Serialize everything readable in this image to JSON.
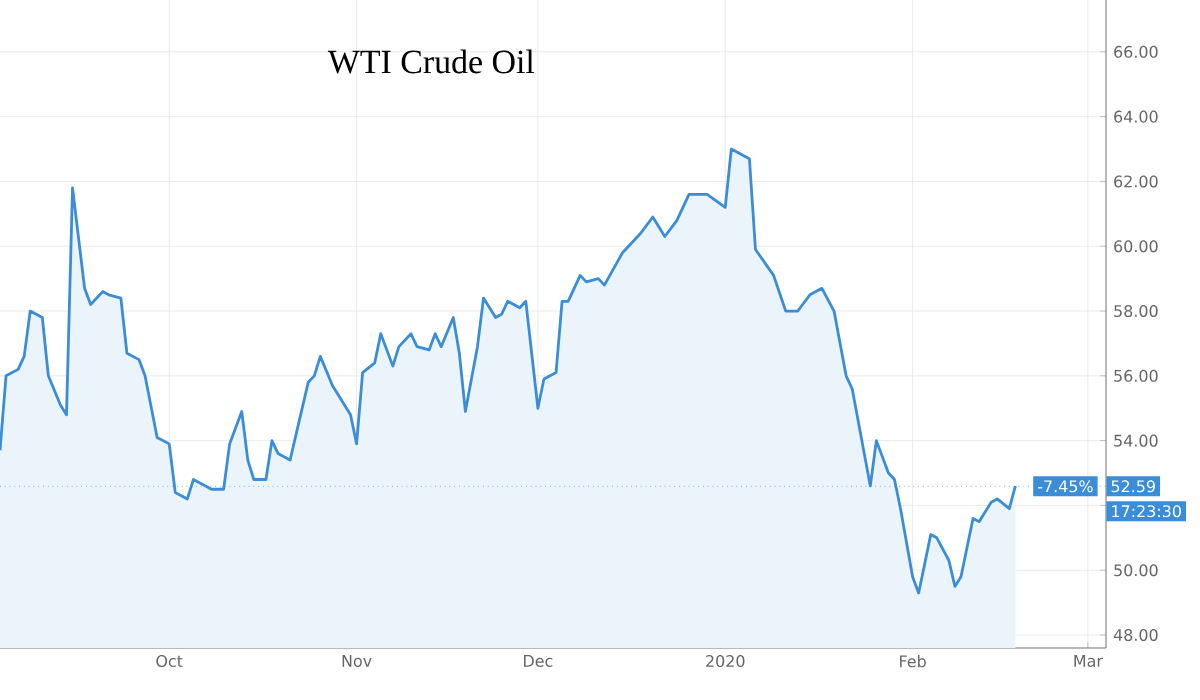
{
  "chart_data": {
    "type": "area",
    "title": "WTI Crude Oil",
    "x": [
      "2019-09-03",
      "2019-09-04",
      "2019-09-06",
      "2019-09-07",
      "2019-09-08",
      "2019-09-10",
      "2019-09-11",
      "2019-09-13",
      "2019-09-14",
      "2019-09-15",
      "2019-09-17",
      "2019-09-18",
      "2019-09-20",
      "2019-09-21",
      "2019-09-23",
      "2019-09-24",
      "2019-09-26",
      "2019-09-27",
      "2019-09-29",
      "2019-10-01",
      "2019-10-02",
      "2019-10-04",
      "2019-10-05",
      "2019-10-07",
      "2019-10-08",
      "2019-10-10",
      "2019-10-11",
      "2019-10-13",
      "2019-10-14",
      "2019-10-15",
      "2019-10-17",
      "2019-10-18",
      "2019-10-19",
      "2019-10-21",
      "2019-10-22",
      "2019-10-24",
      "2019-10-25",
      "2019-10-26",
      "2019-10-28",
      "2019-10-29",
      "2019-10-31",
      "2019-11-01",
      "2019-11-02",
      "2019-11-04",
      "2019-11-05",
      "2019-11-07",
      "2019-11-08",
      "2019-11-10",
      "2019-11-11",
      "2019-11-13",
      "2019-11-14",
      "2019-11-15",
      "2019-11-17",
      "2019-11-18",
      "2019-11-19",
      "2019-11-21",
      "2019-11-22",
      "2019-11-24",
      "2019-11-25",
      "2019-11-26",
      "2019-11-28",
      "2019-11-29",
      "2019-12-01",
      "2019-12-02",
      "2019-12-04",
      "2019-12-05",
      "2019-12-06",
      "2019-12-08",
      "2019-12-09",
      "2019-12-11",
      "2019-12-12",
      "2019-12-15",
      "2019-12-18",
      "2019-12-20",
      "2019-12-22",
      "2019-12-24",
      "2019-12-26",
      "2019-12-29",
      "2020-01-01",
      "2020-01-02",
      "2020-01-05",
      "2020-01-06",
      "2020-01-09",
      "2020-01-11",
      "2020-01-13",
      "2020-01-15",
      "2020-01-17",
      "2020-01-19",
      "2020-01-21",
      "2020-01-22",
      "2020-01-25",
      "2020-01-26",
      "2020-01-28",
      "2020-01-29",
      "2020-01-30",
      "2020-02-01",
      "2020-02-02",
      "2020-02-04",
      "2020-02-05",
      "2020-02-07",
      "2020-02-08",
      "2020-02-09",
      "2020-02-11",
      "2020-02-12",
      "2020-02-14",
      "2020-02-15",
      "2020-02-17",
      "2020-02-18"
    ],
    "series": [
      {
        "color": "#3a8dd6",
        "values": [
          53.7,
          56.0,
          56.2,
          56.6,
          58.0,
          57.8,
          56.0,
          55.1,
          54.8,
          61.8,
          58.7,
          58.2,
          58.6,
          58.5,
          58.4,
          56.7,
          56.5,
          56.0,
          54.1,
          53.9,
          52.4,
          52.2,
          52.8,
          52.6,
          52.5,
          52.5,
          53.9,
          54.9,
          53.4,
          52.8,
          52.8,
          54.0,
          53.6,
          53.4,
          54.2,
          55.8,
          56.0,
          56.6,
          55.7,
          55.4,
          54.8,
          53.9,
          56.1,
          56.4,
          57.3,
          56.3,
          56.9,
          57.3,
          56.9,
          56.8,
          57.3,
          56.9,
          57.8,
          56.7,
          54.9,
          56.9,
          58.4,
          57.8,
          57.9,
          58.3,
          58.1,
          58.3,
          55.0,
          55.9,
          56.1,
          58.3,
          58.3,
          59.1,
          58.9,
          59.0,
          58.8,
          59.8,
          60.4,
          60.9,
          60.3,
          60.8,
          61.6,
          61.6,
          61.2,
          63.0,
          62.7,
          59.9,
          59.1,
          58.0,
          58.0,
          58.5,
          58.7,
          58.0,
          56.0,
          55.6,
          52.6,
          54.0,
          53.0,
          52.8,
          51.9,
          49.8,
          49.3,
          51.1,
          51.0,
          50.3,
          49.5,
          49.8,
          51.6,
          51.5,
          52.1,
          52.2,
          51.9,
          52.6
        ]
      }
    ],
    "xlim": [
      "2019-09-03",
      "2020-03-04"
    ],
    "xticks": [
      {
        "value": "2019-10-01",
        "label": "Oct"
      },
      {
        "value": "2019-11-01",
        "label": "Nov"
      },
      {
        "value": "2019-12-01",
        "label": "Dec"
      },
      {
        "value": "2020-01-01",
        "label": "2020"
      },
      {
        "value": "2020-02-01",
        "label": "Feb"
      },
      {
        "value": "2020-03-01",
        "label": "Mar"
      }
    ],
    "ylim": [
      47.6,
      67.6
    ],
    "yticks": [
      {
        "value": 48,
        "label": "48.00"
      },
      {
        "value": 50,
        "label": "50.00"
      },
      {
        "value": 52,
        "label": null
      },
      {
        "value": 54,
        "label": "54.00"
      },
      {
        "value": 56,
        "label": "56.00"
      },
      {
        "value": 58,
        "label": "58.00"
      },
      {
        "value": 60,
        "label": "60.00"
      },
      {
        "value": 62,
        "label": "62.00"
      },
      {
        "value": 64,
        "label": "64.00"
      },
      {
        "value": 66,
        "label": "66.00"
      }
    ],
    "ref_lines": [
      {
        "axis": "y",
        "value": 52.59,
        "label": "52.59",
        "color": "#3a8dd6",
        "line_style": "dotted"
      }
    ],
    "annotations": [
      "-7.45%",
      "17:23:30"
    ],
    "grid": true
  }
}
